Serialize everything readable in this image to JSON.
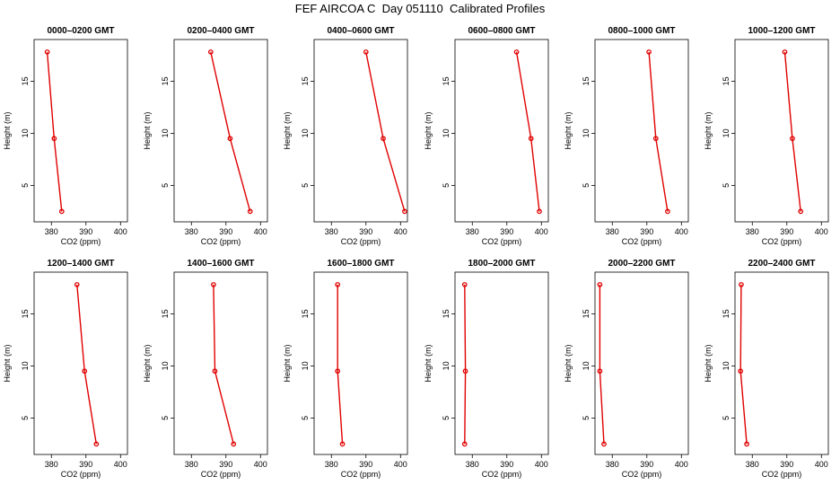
{
  "title": "FEF AIRCOA C  Day 051110  Calibrated Profiles",
  "line_color": "#e00000",
  "chart_data": [
    {
      "type": "line",
      "title": "0000–0200 GMT",
      "xlabel": "CO2 (ppm)",
      "ylabel": "Height (m)",
      "xlim": [
        375,
        402
      ],
      "ylim": [
        1.5,
        19
      ],
      "xticks": [
        "380",
        "390",
        "400"
      ],
      "yticks": [
        "5",
        "10",
        "15"
      ],
      "x": [
        378.8,
        380.8,
        383.0
      ],
      "y": [
        17.8,
        9.5,
        2.5
      ]
    },
    {
      "type": "line",
      "title": "0200–0400 GMT",
      "xlabel": "CO2 (ppm)",
      "ylabel": "Height (m)",
      "xlim": [
        375,
        402
      ],
      "ylim": [
        1.5,
        19
      ],
      "xticks": [
        "380",
        "390",
        "400"
      ],
      "yticks": [
        "5",
        "10",
        "15"
      ],
      "x": [
        385.6,
        391.2,
        397.0
      ],
      "y": [
        17.8,
        9.5,
        2.5
      ]
    },
    {
      "type": "line",
      "title": "0400–0600 GMT",
      "xlabel": "CO2 (ppm)",
      "ylabel": "Height (m)",
      "xlim": [
        375,
        402
      ],
      "ylim": [
        1.5,
        19
      ],
      "xticks": [
        "380",
        "390",
        "400"
      ],
      "yticks": [
        "5",
        "10",
        "15"
      ],
      "x": [
        390.0,
        395.0,
        401.2
      ],
      "y": [
        17.8,
        9.5,
        2.5
      ]
    },
    {
      "type": "line",
      "title": "0600–0800 GMT",
      "xlabel": "CO2 (ppm)",
      "ylabel": "Height (m)",
      "xlim": [
        375,
        402
      ],
      "ylim": [
        1.5,
        19
      ],
      "xticks": [
        "380",
        "390",
        "400"
      ],
      "yticks": [
        "5",
        "10",
        "15"
      ],
      "x": [
        392.8,
        397.0,
        399.4
      ],
      "y": [
        17.8,
        9.5,
        2.5
      ]
    },
    {
      "type": "line",
      "title": "0800–1000 GMT",
      "xlabel": "CO2 (ppm)",
      "ylabel": "Height (m)",
      "xlim": [
        375,
        402
      ],
      "ylim": [
        1.5,
        19
      ],
      "xticks": [
        "380",
        "390",
        "400"
      ],
      "yticks": [
        "5",
        "10",
        "15"
      ],
      "x": [
        390.6,
        392.6,
        396.0
      ],
      "y": [
        17.8,
        9.5,
        2.5
      ]
    },
    {
      "type": "line",
      "title": "1000–1200 GMT",
      "xlabel": "CO2 (ppm)",
      "ylabel": "Height (m)",
      "xlim": [
        375,
        402
      ],
      "ylim": [
        1.5,
        19
      ],
      "xticks": [
        "380",
        "390",
        "400"
      ],
      "yticks": [
        "5",
        "10",
        "15"
      ],
      "x": [
        389.4,
        391.6,
        394.0
      ],
      "y": [
        17.8,
        9.5,
        2.5
      ]
    },
    {
      "type": "line",
      "title": "1200–1400 GMT",
      "xlabel": "CO2 (ppm)",
      "ylabel": "Height (m)",
      "xlim": [
        375,
        402
      ],
      "ylim": [
        1.5,
        19
      ],
      "xticks": [
        "380",
        "390",
        "400"
      ],
      "yticks": [
        "5",
        "10",
        "15"
      ],
      "x": [
        387.4,
        389.6,
        393.0
      ],
      "y": [
        17.8,
        9.5,
        2.5
      ]
    },
    {
      "type": "line",
      "title": "1400–1600 GMT",
      "xlabel": "CO2 (ppm)",
      "ylabel": "Height (m)",
      "xlim": [
        375,
        402
      ],
      "ylim": [
        1.5,
        19
      ],
      "xticks": [
        "380",
        "390",
        "400"
      ],
      "yticks": [
        "5",
        "10",
        "15"
      ],
      "x": [
        386.4,
        386.8,
        392.2
      ],
      "y": [
        17.8,
        9.5,
        2.5
      ]
    },
    {
      "type": "line",
      "title": "1600–1800 GMT",
      "xlabel": "CO2 (ppm)",
      "ylabel": "Height (m)",
      "xlim": [
        375,
        402
      ],
      "ylim": [
        1.5,
        19
      ],
      "xticks": [
        "380",
        "390",
        "400"
      ],
      "yticks": [
        "5",
        "10",
        "15"
      ],
      "x": [
        381.8,
        381.8,
        383.2
      ],
      "y": [
        17.8,
        9.5,
        2.5
      ]
    },
    {
      "type": "line",
      "title": "1800–2000 GMT",
      "xlabel": "CO2 (ppm)",
      "ylabel": "Height (m)",
      "xlim": [
        375,
        402
      ],
      "ylim": [
        1.5,
        19
      ],
      "xticks": [
        "380",
        "390",
        "400"
      ],
      "yticks": [
        "5",
        "10",
        "15"
      ],
      "x": [
        377.8,
        378.0,
        377.8
      ],
      "y": [
        17.8,
        9.5,
        2.5
      ]
    },
    {
      "type": "line",
      "title": "2000–2200 GMT",
      "xlabel": "CO2 (ppm)",
      "ylabel": "Height (m)",
      "xlim": [
        375,
        402
      ],
      "ylim": [
        1.5,
        19
      ],
      "xticks": [
        "380",
        "390",
        "400"
      ],
      "yticks": [
        "5",
        "10",
        "15"
      ],
      "x": [
        376.4,
        376.4,
        377.6
      ],
      "y": [
        17.8,
        9.5,
        2.5
      ]
    },
    {
      "type": "line",
      "title": "2200–2400 GMT",
      "xlabel": "CO2 (ppm)",
      "ylabel": "Height (m)",
      "xlim": [
        375,
        402
      ],
      "ylim": [
        1.5,
        19
      ],
      "xticks": [
        "380",
        "390",
        "400"
      ],
      "yticks": [
        "5",
        "10",
        "15"
      ],
      "x": [
        376.8,
        376.6,
        378.4
      ],
      "y": [
        17.8,
        9.5,
        2.5
      ]
    }
  ]
}
